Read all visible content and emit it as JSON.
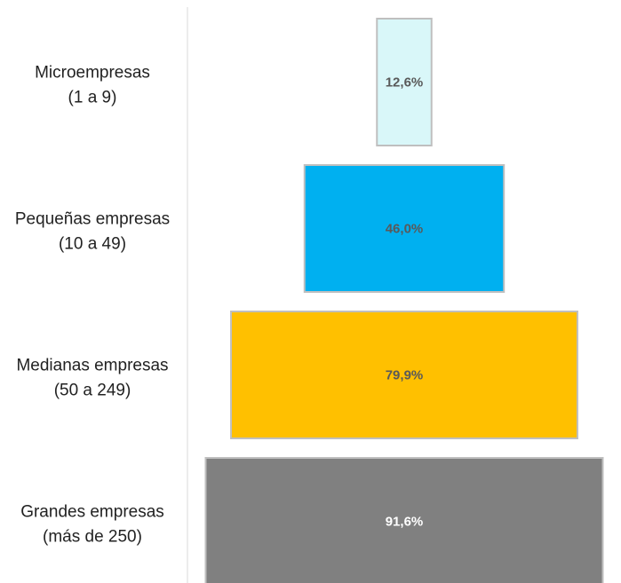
{
  "chart_data": {
    "type": "bar",
    "orientation": "horizontal-centered",
    "categories": [
      [
        "Microempresas",
        "(1 a 9)"
      ],
      [
        "Pequeñas empresas",
        "(10 a 49)"
      ],
      [
        "Medianas empresas",
        "(50 a 249)"
      ],
      [
        "Grandes empresas",
        "(más de 250)"
      ]
    ],
    "values": [
      12.6,
      46.0,
      79.9,
      91.6
    ],
    "value_labels": [
      "12,6%",
      "46,0%",
      "79,9%",
      "91,6%"
    ],
    "colors": [
      "#d9f7f9",
      "#00b0f0",
      "#ffc000",
      "#808080"
    ],
    "label_colors": [
      "#595959",
      "#595959",
      "#595959",
      "#ffffff"
    ],
    "xlim": [
      0,
      100
    ],
    "title": "",
    "xlabel": "",
    "ylabel": "",
    "grid": false,
    "legend": "none"
  }
}
